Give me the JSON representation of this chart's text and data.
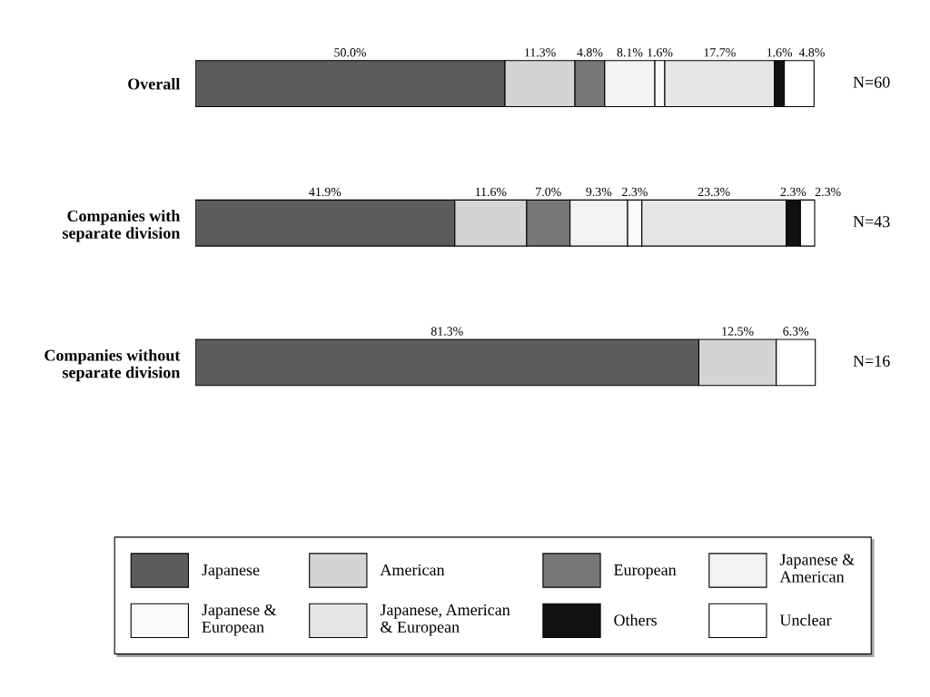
{
  "chart_data": {
    "type": "bar",
    "orientation": "horizontal",
    "stacked": true,
    "categories": [
      "Overall",
      "Companies with\nseparate division",
      "Companies without\nseparate division"
    ],
    "tick_labels": "y",
    "grid": false,
    "legend": "bottom",
    "series": [
      {
        "name": "Japanese",
        "color": "#5c5c5c",
        "values": [
          50.0,
          41.9,
          81.3
        ],
        "value_labels": [
          "50.0%",
          "41.9%",
          "81.3%"
        ]
      },
      {
        "name": "American",
        "color": "#d4d4d4",
        "values": [
          11.3,
          11.6,
          12.5
        ],
        "value_labels": [
          "11.3%",
          "11.6%",
          "12.5%"
        ]
      },
      {
        "name": "European",
        "color": "#777777",
        "values": [
          4.8,
          7.0,
          0
        ],
        "value_labels": [
          "4.8%",
          "7.0%",
          null
        ]
      },
      {
        "name": "Japanese &\nAmerican",
        "color": "#f2f2f2",
        "values": [
          8.1,
          9.3,
          0
        ],
        "value_labels": [
          "8.1%",
          "9.3%",
          null
        ]
      },
      {
        "name": "Japanese &\nEuropean",
        "color": "#fafafa",
        "values": [
          1.6,
          2.3,
          0
        ],
        "value_labels": [
          "1.6%",
          "2.3%",
          null
        ]
      },
      {
        "name": "Japanese, American\n& European",
        "color": "#e6e6e6",
        "values": [
          17.7,
          23.3,
          0
        ],
        "value_labels": [
          "17.7%",
          "23.3%",
          null
        ]
      },
      {
        "name": "Others",
        "color": "#111111",
        "values": [
          1.6,
          2.3,
          0
        ],
        "value_labels": [
          "1.6%",
          "2.3%",
          null
        ]
      },
      {
        "name": "Unclear",
        "color": "#ffffff",
        "values": [
          4.8,
          2.3,
          6.3
        ],
        "value_labels": [
          "4.8%",
          "2.3%",
          "6.3%"
        ]
      }
    ],
    "annotations": [
      "N=60",
      "N=43",
      "N=16"
    ]
  }
}
